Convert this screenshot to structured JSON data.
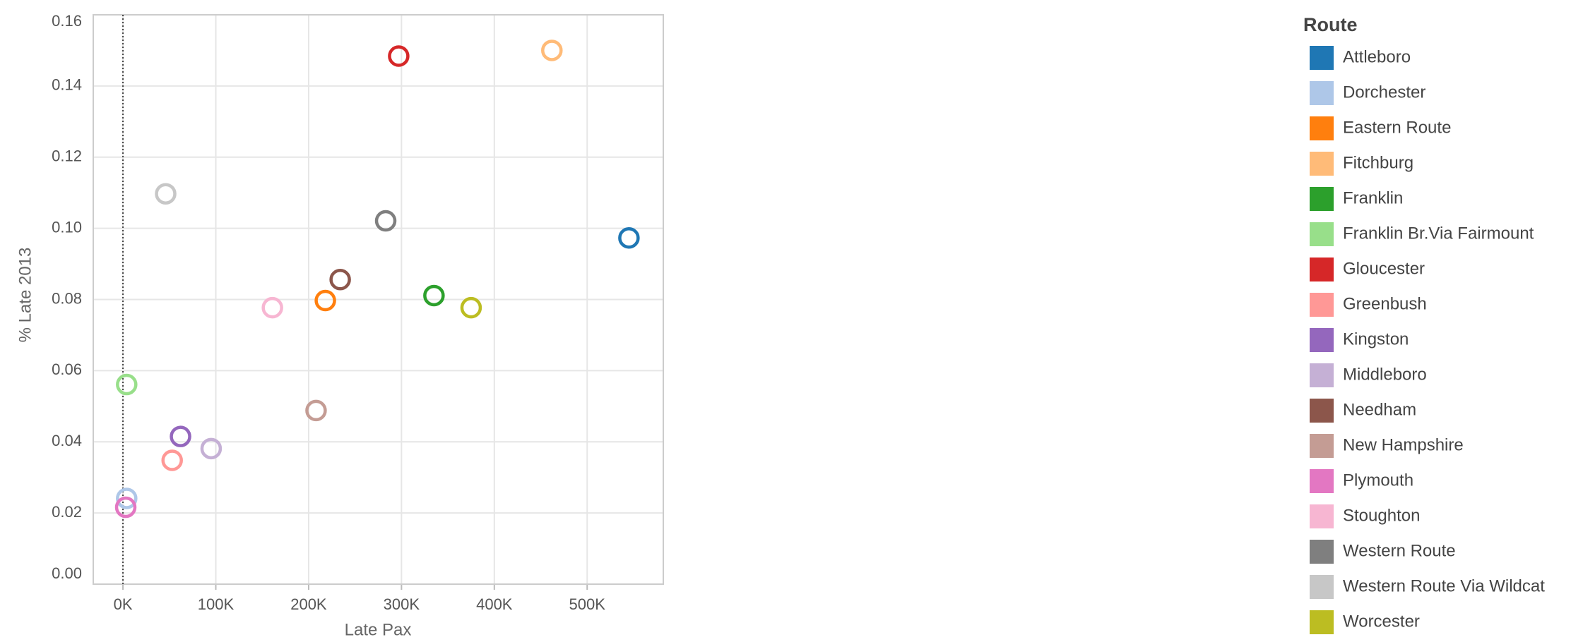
{
  "chart_data": {
    "type": "scatter",
    "x_label": "Late Pax",
    "y_label": "% Late 2013",
    "legend_title": "Route",
    "xlim": [
      -32000,
      582000
    ],
    "ylim": [
      0,
      0.16
    ],
    "xticks": [
      {
        "value": 0,
        "label": "0K"
      },
      {
        "value": 100000,
        "label": "100K"
      },
      {
        "value": 200000,
        "label": "200K"
      },
      {
        "value": 300000,
        "label": "300K"
      },
      {
        "value": 400000,
        "label": "400K"
      },
      {
        "value": 500000,
        "label": "500K"
      }
    ],
    "yticks": [
      {
        "value": 0,
        "label": "0.00"
      },
      {
        "value": 0.02,
        "label": "0.02"
      },
      {
        "value": 0.04,
        "label": "0.04"
      },
      {
        "value": 0.06,
        "label": "0.06"
      },
      {
        "value": 0.08,
        "label": "0.08"
      },
      {
        "value": 0.1,
        "label": "0.10"
      },
      {
        "value": 0.12,
        "label": "0.12"
      },
      {
        "value": 0.14,
        "label": "0.14"
      },
      {
        "value": 0.16,
        "label": "0.16"
      }
    ],
    "grid": true,
    "zero_line": true,
    "legend": "right",
    "series": [
      {
        "name": "Attleboro",
        "color": "#1f77b4",
        "x": [
          545000
        ],
        "values": [
          0.0973
        ]
      },
      {
        "name": "Dorchester",
        "color": "#aec7e8",
        "x": [
          4000
        ],
        "values": [
          0.0241
        ]
      },
      {
        "name": "Eastern Route",
        "color": "#ff7f0e",
        "x": [
          218000
        ],
        "values": [
          0.0797
        ]
      },
      {
        "name": "Fitchburg",
        "color": "#ffbb78",
        "x": [
          462000
        ],
        "values": [
          0.15
        ]
      },
      {
        "name": "Franklin",
        "color": "#2ca02c",
        "x": [
          335000
        ],
        "values": [
          0.0811
        ]
      },
      {
        "name": "Franklin Br.Via Fairmount",
        "color": "#98df8a",
        "x": [
          4000
        ],
        "values": [
          0.0561
        ]
      },
      {
        "name": "Gloucester",
        "color": "#d62728",
        "x": [
          297000
        ],
        "values": [
          0.1484
        ]
      },
      {
        "name": "Greenbush",
        "color": "#ff9896",
        "x": [
          53000
        ],
        "values": [
          0.0348
        ]
      },
      {
        "name": "Kingston",
        "color": "#9467bd",
        "x": [
          62000
        ],
        "values": [
          0.0415
        ]
      },
      {
        "name": "Middleboro",
        "color": "#c5b0d5",
        "x": [
          95000
        ],
        "values": [
          0.0381
        ]
      },
      {
        "name": "Needham",
        "color": "#8c564b",
        "x": [
          234000
        ],
        "values": [
          0.0856
        ]
      },
      {
        "name": "New Hampshire",
        "color": "#c49c94",
        "x": [
          208000
        ],
        "values": [
          0.0488
        ]
      },
      {
        "name": "Plymouth",
        "color": "#e377c2",
        "x": [
          3000
        ],
        "values": [
          0.0216
        ]
      },
      {
        "name": "Stoughton",
        "color": "#f7b6d2",
        "x": [
          161000
        ],
        "values": [
          0.0777
        ]
      },
      {
        "name": "Western Route",
        "color": "#7f7f7f",
        "x": [
          283000
        ],
        "values": [
          0.1021
        ]
      },
      {
        "name": "Western Route Via Wildcat",
        "color": "#c7c7c7",
        "x": [
          46000
        ],
        "values": [
          0.1097
        ]
      },
      {
        "name": "Worcester",
        "color": "#bcbd22",
        "x": [
          375000
        ],
        "values": [
          0.0777
        ]
      }
    ]
  }
}
